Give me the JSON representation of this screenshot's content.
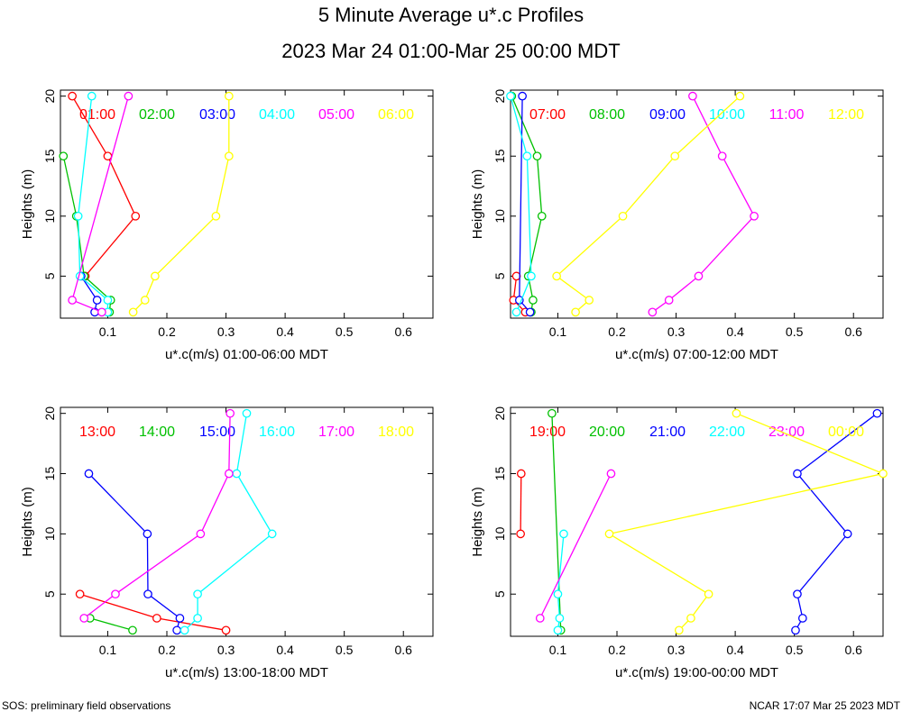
{
  "title": "5 Minute Average u*.c Profiles",
  "subtitle": "2023 Mar 24 01:00-Mar 25 00:00 MDT",
  "footer_left": "SOS: preliminary field observations",
  "footer_right": "NCAR 17:07 Mar 25 2023 MDT",
  "chart_data": [
    {
      "type": "line",
      "xlabel": "u*.c(m/s) 01:00-06:00 MDT",
      "ylabel": "Heights (m)",
      "xlim": [
        0.02,
        0.65
      ],
      "ylim": [
        1.5,
        20.5
      ],
      "xticks": [
        0.1,
        0.2,
        0.3,
        0.4,
        0.5,
        0.6
      ],
      "yticks": [
        5,
        10,
        15,
        20
      ],
      "series": [
        {
          "name": "01:00",
          "color": "#ff0000",
          "x": [
            0.04,
            0.1,
            0.147,
            0.062
          ],
          "y": [
            20,
            15,
            10,
            5
          ],
          "points": [
            [
              0.04,
              20
            ],
            [
              0.1,
              15
            ],
            [
              0.147,
              10
            ],
            [
              0.062,
              5
            ]
          ]
        },
        {
          "name": "02:00",
          "color": "#00c000",
          "x": [
            0.025,
            0.047,
            0.06,
            0.105,
            0.103
          ],
          "y": [
            15,
            10,
            5,
            3,
            2
          ],
          "points": [
            [
              0.025,
              15
            ],
            [
              0.047,
              10
            ],
            [
              0.06,
              5
            ],
            [
              0.105,
              3
            ],
            [
              0.103,
              2
            ]
          ]
        },
        {
          "name": "03:00",
          "color": "#0000ff",
          "x": [
            0.055,
            0.082,
            0.078
          ],
          "y": [
            5,
            3,
            2
          ],
          "points": [
            [
              0.055,
              5
            ],
            [
              0.082,
              3
            ],
            [
              0.078,
              2
            ]
          ]
        },
        {
          "name": "04:00",
          "color": "#00ffff",
          "x": [
            0.073,
            0.05,
            0.053,
            0.1,
            0.1
          ],
          "y": [
            20,
            10,
            5,
            3,
            2
          ],
          "points": [
            [
              0.073,
              20
            ],
            [
              0.05,
              10
            ],
            [
              0.053,
              5
            ],
            [
              0.1,
              3
            ],
            [
              0.1,
              2
            ]
          ]
        },
        {
          "name": "05:00",
          "color": "#ff00ff",
          "x": [
            0.135,
            0.04,
            0.09
          ],
          "y": [
            20,
            3,
            2
          ],
          "points": [
            [
              0.135,
              20
            ],
            [
              0.04,
              3
            ],
            [
              0.09,
              2
            ]
          ]
        },
        {
          "name": "06:00",
          "color": "#ffff00",
          "x": [
            0.305,
            0.305,
            0.283,
            0.18,
            0.163,
            0.143
          ],
          "y": [
            20,
            15,
            10,
            5,
            3,
            2
          ],
          "points": [
            [
              0.305,
              20
            ],
            [
              0.305,
              15
            ],
            [
              0.283,
              10
            ],
            [
              0.18,
              5
            ],
            [
              0.163,
              3
            ],
            [
              0.143,
              2
            ]
          ]
        }
      ]
    },
    {
      "type": "line",
      "xlabel": "u*.c(m/s) 07:00-12:00 MDT",
      "ylabel": "Heights (m)",
      "xlim": [
        0.02,
        0.65
      ],
      "ylim": [
        1.5,
        20.5
      ],
      "xticks": [
        0.1,
        0.2,
        0.3,
        0.4,
        0.5,
        0.6
      ],
      "yticks": [
        5,
        10,
        15,
        20
      ],
      "series": [
        {
          "name": "07:00",
          "color": "#ff0000",
          "x": [
            0.03,
            0.025,
            0.045
          ],
          "y": [
            5,
            3,
            2
          ],
          "points": [
            [
              0.03,
              5
            ],
            [
              0.025,
              3
            ],
            [
              0.045,
              2
            ]
          ]
        },
        {
          "name": "08:00",
          "color": "#00c000",
          "x": [
            0.022,
            0.065,
            0.073,
            0.05,
            0.058,
            0.055
          ],
          "y": [
            20,
            15,
            10,
            5,
            3,
            2
          ],
          "points": [
            [
              0.022,
              20
            ],
            [
              0.065,
              15
            ],
            [
              0.073,
              10
            ],
            [
              0.05,
              5
            ],
            [
              0.058,
              3
            ],
            [
              0.055,
              2
            ]
          ]
        },
        {
          "name": "09:00",
          "color": "#0000ff",
          "x": [
            0.04,
            0.035,
            0.053
          ],
          "y": [
            20,
            3,
            2
          ],
          "points": [
            [
              0.04,
              20
            ],
            [
              0.035,
              3
            ],
            [
              0.053,
              2
            ]
          ]
        },
        {
          "name": "10:00",
          "color": "#00ffff",
          "x": [
            0.02,
            0.048,
            0.055,
            0.03
          ],
          "y": [
            20,
            15,
            5,
            2
          ],
          "points": [
            [
              0.02,
              20
            ],
            [
              0.048,
              15
            ],
            [
              0.055,
              5
            ],
            [
              0.03,
              2
            ]
          ]
        },
        {
          "name": "11:00",
          "color": "#ff00ff",
          "x": [
            0.328,
            0.378,
            0.432,
            0.338,
            0.288,
            0.26
          ],
          "y": [
            20,
            15,
            10,
            5,
            3,
            2
          ],
          "points": [
            [
              0.328,
              20
            ],
            [
              0.378,
              15
            ],
            [
              0.432,
              10
            ],
            [
              0.338,
              5
            ],
            [
              0.288,
              3
            ],
            [
              0.26,
              2
            ]
          ]
        },
        {
          "name": "12:00",
          "color": "#ffff00",
          "x": [
            0.408,
            0.298,
            0.21,
            0.098,
            0.153,
            0.13
          ],
          "y": [
            20,
            15,
            10,
            5,
            3,
            2
          ],
          "points": [
            [
              0.408,
              20
            ],
            [
              0.298,
              15
            ],
            [
              0.21,
              10
            ],
            [
              0.098,
              5
            ],
            [
              0.153,
              3
            ],
            [
              0.13,
              2
            ]
          ]
        }
      ]
    },
    {
      "type": "line",
      "xlabel": "u*.c(m/s) 13:00-18:00 MDT",
      "ylabel": "Heights (m)",
      "xlim": [
        0.02,
        0.65
      ],
      "ylim": [
        1.5,
        20.5
      ],
      "xticks": [
        0.1,
        0.2,
        0.3,
        0.4,
        0.5,
        0.6
      ],
      "yticks": [
        5,
        10,
        15,
        20
      ],
      "series": [
        {
          "name": "13:00",
          "color": "#ff0000",
          "x": [
            0.053,
            0.183,
            0.3
          ],
          "y": [
            5,
            3,
            2
          ],
          "points": [
            [
              0.053,
              5
            ],
            [
              0.183,
              3
            ],
            [
              0.3,
              2
            ]
          ]
        },
        {
          "name": "14:00",
          "color": "#00c000",
          "x": [
            0.07,
            0.142
          ],
          "y": [
            3,
            2
          ],
          "points": [
            [
              0.07,
              3
            ],
            [
              0.142,
              2
            ]
          ]
        },
        {
          "name": "15:00",
          "color": "#0000ff",
          "x": [
            0.068,
            0.167,
            0.168,
            0.222,
            0.217
          ],
          "y": [
            15,
            10,
            5,
            3,
            2
          ],
          "points": [
            [
              0.068,
              15
            ],
            [
              0.167,
              10
            ],
            [
              0.168,
              5
            ],
            [
              0.222,
              3
            ],
            [
              0.217,
              2
            ]
          ]
        },
        {
          "name": "16:00",
          "color": "#00ffff",
          "x": [
            0.335,
            0.318,
            0.378,
            0.252,
            0.252,
            0.23
          ],
          "y": [
            20,
            15,
            10,
            5,
            3,
            2
          ],
          "points": [
            [
              0.335,
              20
            ],
            [
              0.318,
              15
            ],
            [
              0.378,
              10
            ],
            [
              0.252,
              5
            ],
            [
              0.252,
              3
            ],
            [
              0.23,
              2
            ]
          ]
        },
        {
          "name": "17:00",
          "color": "#ff00ff",
          "x": [
            0.307,
            0.305,
            0.257,
            0.113,
            0.06
          ],
          "y": [
            20,
            15,
            10,
            5,
            3
          ],
          "points": [
            [
              0.307,
              20
            ],
            [
              0.305,
              15
            ],
            [
              0.257,
              10
            ],
            [
              0.113,
              5
            ],
            [
              0.06,
              3
            ]
          ]
        },
        {
          "name": "18:00",
          "color": "#ffff00",
          "x": [],
          "y": [],
          "points": []
        }
      ]
    },
    {
      "type": "line",
      "xlabel": "u*.c(m/s) 19:00-00:00 MDT",
      "ylabel": "Heights (m)",
      "xlim": [
        0.02,
        0.65
      ],
      "ylim": [
        1.5,
        20.5
      ],
      "xticks": [
        0.1,
        0.2,
        0.3,
        0.4,
        0.5,
        0.6
      ],
      "yticks": [
        5,
        10,
        15,
        20
      ],
      "series": [
        {
          "name": "19:00",
          "color": "#ff0000",
          "x": [
            0.038,
            0.037
          ],
          "y": [
            15,
            10
          ],
          "points": [
            [
              0.038,
              15
            ],
            [
              0.037,
              10
            ]
          ]
        },
        {
          "name": "20:00",
          "color": "#00c000",
          "x": [
            0.09,
            0.105
          ],
          "y": [
            20,
            2
          ],
          "points": [
            [
              0.09,
              20
            ],
            [
              0.105,
              2
            ]
          ]
        },
        {
          "name": "21:00",
          "color": "#0000ff",
          "x": [
            0.64,
            0.505,
            0.59,
            0.505,
            0.514,
            0.502
          ],
          "y": [
            20,
            15,
            10,
            5,
            3,
            2
          ],
          "points": [
            [
              0.64,
              20
            ],
            [
              0.505,
              15
            ],
            [
              0.59,
              10
            ],
            [
              0.505,
              5
            ],
            [
              0.514,
              3
            ],
            [
              0.502,
              2
            ]
          ]
        },
        {
          "name": "22:00",
          "color": "#00ffff",
          "x": [
            0.11,
            0.1,
            0.103,
            0.1
          ],
          "y": [
            10,
            5,
            3,
            2
          ],
          "points": [
            [
              0.11,
              10
            ],
            [
              0.1,
              5
            ],
            [
              0.103,
              3
            ],
            [
              0.1,
              2
            ]
          ]
        },
        {
          "name": "23:00",
          "color": "#ff00ff",
          "x": [
            0.19,
            0.07
          ],
          "y": [
            15,
            3
          ],
          "points": [
            [
              0.19,
              15
            ],
            [
              0.07,
              3
            ]
          ]
        },
        {
          "name": "00:00",
          "color": "#ffff00",
          "x": [
            0.402,
            0.65,
            0.187,
            0.355,
            0.325,
            0.305
          ],
          "y": [
            20,
            15,
            10,
            5,
            3,
            2
          ],
          "points": [
            [
              0.402,
              20
            ],
            [
              0.65,
              15
            ],
            [
              0.187,
              10
            ],
            [
              0.355,
              5
            ],
            [
              0.325,
              3
            ],
            [
              0.305,
              2
            ]
          ]
        }
      ]
    }
  ]
}
